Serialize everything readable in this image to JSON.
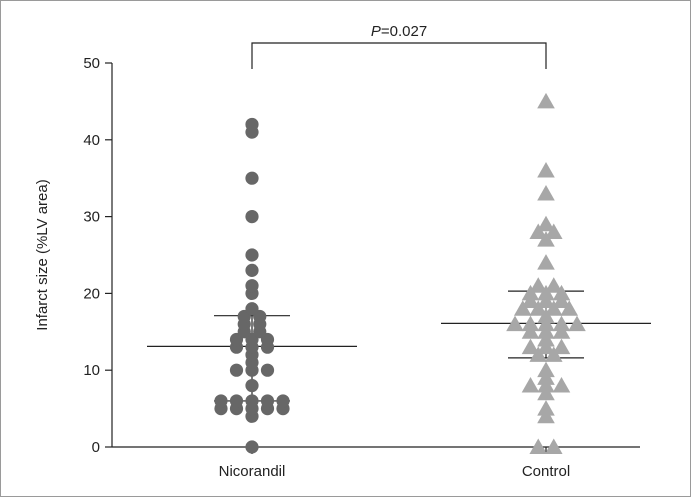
{
  "chart_data": {
    "type": "scatter",
    "title": "",
    "xlabel": "",
    "ylabel": "Infarct size (%LV area)",
    "ylim": [
      0,
      50
    ],
    "yticks": [
      0,
      10,
      20,
      30,
      40,
      50
    ],
    "categories": [
      "Nicorandil",
      "Control"
    ],
    "grid": false,
    "annotation": {
      "p_symbol": "P",
      "p_value_text": "=0.027"
    },
    "colors": {
      "nicorandil": "#676767",
      "control": "#a7a7a7",
      "axis": "#222222"
    },
    "marker_shapes": [
      "circle",
      "triangle"
    ],
    "series": [
      {
        "category": "Nicorandil",
        "marker": "circle",
        "summary": {
          "mean": 13.1,
          "upper": 17.1,
          "lower": 6.0
        },
        "values": [
          0,
          4,
          5,
          5,
          5,
          5,
          5,
          6,
          6,
          6,
          6,
          6,
          8,
          10,
          10,
          10,
          11,
          12,
          13,
          13,
          13,
          14,
          14,
          14,
          15,
          15,
          16,
          16,
          17,
          17,
          18,
          20,
          21,
          23,
          25,
          30,
          35,
          41,
          42
        ]
      },
      {
        "category": "Control",
        "marker": "triangle",
        "summary": {
          "mean": 16.1,
          "upper": 20.3,
          "lower": 11.6
        },
        "values": [
          0,
          0,
          4,
          5,
          7,
          8,
          8,
          8,
          9,
          10,
          12,
          12,
          13,
          13,
          13,
          14,
          15,
          15,
          15,
          16,
          16,
          16,
          16,
          16,
          17,
          18,
          18,
          18,
          18,
          19,
          19,
          19,
          20,
          20,
          20,
          21,
          21,
          24,
          27,
          28,
          28,
          29,
          33,
          36,
          45
        ]
      }
    ]
  }
}
